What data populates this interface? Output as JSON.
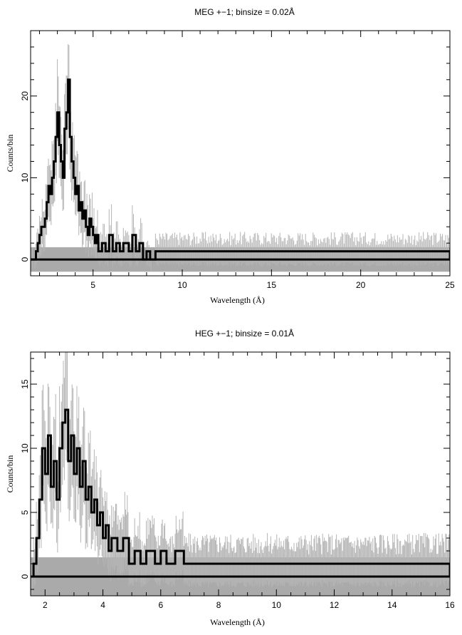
{
  "chart_data": [
    {
      "type": "line",
      "title": "MEG +−1; binsize = 0.02Å",
      "xlabel": "Wavelength (Å)",
      "ylabel": "Counts/bin",
      "xlim": [
        1.5,
        25
      ],
      "ylim": [
        -2,
        28
      ],
      "xticks": [
        5,
        10,
        15,
        20,
        25
      ],
      "xtick_labels": [
        "5",
        "10",
        "15",
        "20",
        "25"
      ],
      "yticks": [
        0,
        10,
        20
      ],
      "ytick_labels": [
        "0",
        "10",
        "20"
      ],
      "x_minor_step": 1,
      "y_minor_step": 2,
      "binsize": 0.02,
      "grid": false,
      "series": [
        {
          "role": "counts",
          "color": "#000000",
          "points": [
            [
              1.5,
              0
            ],
            [
              1.6,
              0
            ],
            [
              1.8,
              1
            ],
            [
              1.9,
              2
            ],
            [
              2.0,
              3
            ],
            [
              2.1,
              4
            ],
            [
              2.2,
              4
            ],
            [
              2.3,
              5
            ],
            [
              2.4,
              7
            ],
            [
              2.5,
              9
            ],
            [
              2.6,
              8
            ],
            [
              2.7,
              10
            ],
            [
              2.8,
              12
            ],
            [
              2.9,
              15
            ],
            [
              3.0,
              18
            ],
            [
              3.1,
              14
            ],
            [
              3.2,
              12
            ],
            [
              3.3,
              10
            ],
            [
              3.4,
              16
            ],
            [
              3.5,
              18
            ],
            [
              3.6,
              22
            ],
            [
              3.7,
              15
            ],
            [
              3.8,
              12
            ],
            [
              3.9,
              10
            ],
            [
              4.0,
              8
            ],
            [
              4.1,
              9
            ],
            [
              4.2,
              6
            ],
            [
              4.3,
              7
            ],
            [
              4.4,
              5
            ],
            [
              4.5,
              6
            ],
            [
              4.6,
              4
            ],
            [
              4.7,
              3
            ],
            [
              4.8,
              5
            ],
            [
              4.9,
              4
            ],
            [
              5.0,
              3
            ],
            [
              5.1,
              2
            ],
            [
              5.2,
              3
            ],
            [
              5.3,
              1
            ],
            [
              5.5,
              2
            ],
            [
              5.7,
              1
            ],
            [
              5.9,
              3
            ],
            [
              6.1,
              1
            ],
            [
              6.3,
              2
            ],
            [
              6.5,
              1
            ],
            [
              6.7,
              2
            ],
            [
              7.0,
              1
            ],
            [
              7.2,
              3
            ],
            [
              7.4,
              1
            ],
            [
              7.6,
              2
            ],
            [
              7.8,
              0
            ],
            [
              8.0,
              1
            ],
            [
              8.2,
              0
            ],
            [
              8.5,
              1
            ],
            [
              9.2,
              1
            ],
            [
              9.7,
              1
            ],
            [
              10.1,
              1
            ],
            [
              11.6,
              1
            ],
            [
              12.3,
              1
            ],
            [
              22.0,
              1
            ],
            [
              22.3,
              1
            ],
            [
              22.5,
              1
            ],
            [
              25.0,
              0
            ]
          ]
        },
        {
          "role": "background_band",
          "color": "#aaaaaa",
          "x": [
            1.5,
            25
          ],
          "y": [
            -1.5,
            1.5
          ]
        }
      ]
    },
    {
      "type": "line",
      "title": "HEG +−1; binsize = 0.01Å",
      "xlabel": "Wavelength (Å)",
      "ylabel": "Counts/bin",
      "xlim": [
        1.5,
        16
      ],
      "ylim": [
        -1.5,
        17.5
      ],
      "xticks": [
        2,
        4,
        6,
        8,
        10,
        12,
        14,
        16
      ],
      "xtick_labels": [
        "2",
        "4",
        "6",
        "8",
        "10",
        "12",
        "14",
        "16"
      ],
      "yticks": [
        0,
        5,
        10,
        15
      ],
      "ytick_labels": [
        "0",
        "5",
        "10",
        "15"
      ],
      "x_minor_step": 0.5,
      "y_minor_step": 1,
      "binsize": 0.01,
      "grid": false,
      "series": [
        {
          "role": "counts",
          "color": "#000000",
          "points": [
            [
              1.5,
              0
            ],
            [
              1.6,
              1
            ],
            [
              1.7,
              3
            ],
            [
              1.8,
              6
            ],
            [
              1.9,
              10
            ],
            [
              2.0,
              8
            ],
            [
              2.1,
              11
            ],
            [
              2.2,
              7
            ],
            [
              2.3,
              9
            ],
            [
              2.4,
              6
            ],
            [
              2.5,
              10
            ],
            [
              2.6,
              12
            ],
            [
              2.7,
              13
            ],
            [
              2.8,
              9
            ],
            [
              2.9,
              11
            ],
            [
              3.0,
              8
            ],
            [
              3.1,
              10
            ],
            [
              3.2,
              7
            ],
            [
              3.3,
              9
            ],
            [
              3.4,
              6
            ],
            [
              3.5,
              7
            ],
            [
              3.6,
              5
            ],
            [
              3.7,
              6
            ],
            [
              3.8,
              4
            ],
            [
              3.9,
              5
            ],
            [
              4.0,
              3
            ],
            [
              4.1,
              4
            ],
            [
              4.2,
              2
            ],
            [
              4.3,
              3
            ],
            [
              4.5,
              2
            ],
            [
              4.7,
              3
            ],
            [
              4.9,
              1
            ],
            [
              5.1,
              2
            ],
            [
              5.3,
              1
            ],
            [
              5.5,
              2
            ],
            [
              5.8,
              1
            ],
            [
              6.0,
              2
            ],
            [
              6.2,
              1
            ],
            [
              6.5,
              2
            ],
            [
              6.8,
              1
            ],
            [
              7.0,
              1
            ],
            [
              7.3,
              1
            ],
            [
              7.8,
              1
            ],
            [
              8.3,
              1
            ],
            [
              8.6,
              1
            ],
            [
              8.9,
              1
            ],
            [
              9.2,
              1
            ],
            [
              9.6,
              1
            ],
            [
              10.1,
              1
            ],
            [
              16.0,
              0
            ]
          ]
        },
        {
          "role": "background_band",
          "color": "#aaaaaa",
          "x": [
            1.5,
            16
          ],
          "y": [
            -1.5,
            1.5
          ]
        }
      ]
    }
  ]
}
